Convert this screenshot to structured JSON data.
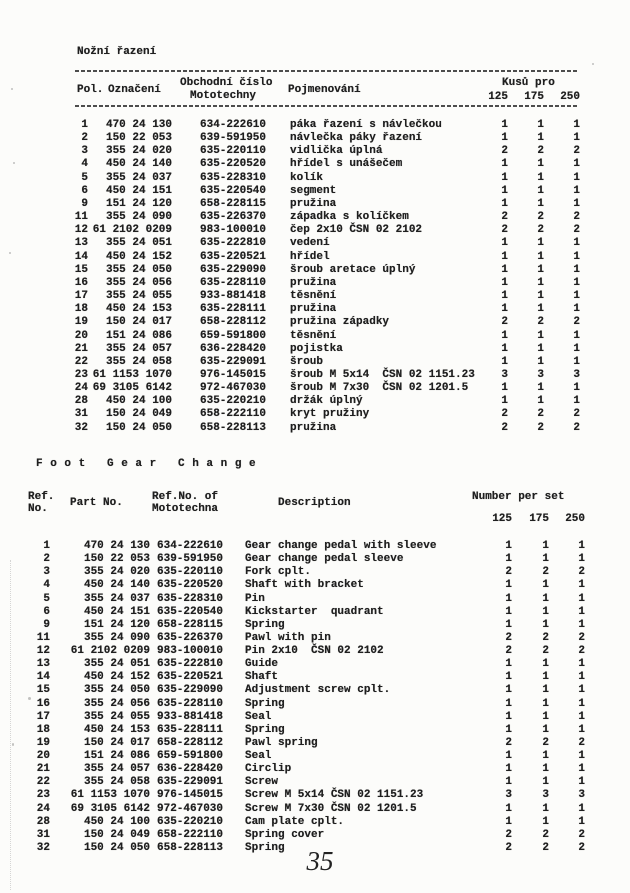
{
  "page_number": "35",
  "colors": {
    "paper": "#fcfcfa",
    "ink": "#1f1f1f"
  },
  "czech_table": {
    "title": "Nožní řazení",
    "headers": {
      "pol": "Pol.",
      "part": "Označení",
      "trade_line1": "Obchodní číslo",
      "trade_line2": "Mototechny",
      "name": "Pojmenování",
      "qty_group": "Kusů pro"
    },
    "qty_cols": [
      "125",
      "175",
      "250"
    ],
    "rows": [
      [
        "1",
        "470 24 130",
        "634-222610",
        "páka řazení s návlečkou",
        "1",
        "1",
        "1"
      ],
      [
        "2",
        "150 22 053",
        "639-591950",
        "návlečka páky řazení",
        "1",
        "1",
        "1"
      ],
      [
        "3",
        "355 24 020",
        "635-220110",
        "vidlička úplná",
        "2",
        "2",
        "2"
      ],
      [
        "4",
        "450 24 140",
        "635-220520",
        "hřídel s unášečem",
        "1",
        "1",
        "1"
      ],
      [
        "5",
        "355 24 037",
        "635-228310",
        "kolík",
        "1",
        "1",
        "1"
      ],
      [
        "6",
        "450 24 151",
        "635-220540",
        "segment",
        "1",
        "1",
        "1"
      ],
      [
        "9",
        "151 24 120",
        "658-228115",
        "pružina",
        "1",
        "1",
        "1"
      ],
      [
        "11",
        "355 24 090",
        "635-226370",
        "západka s kolíčkem",
        "2",
        "2",
        "2"
      ],
      [
        "12",
        "61 2102 0209",
        "983-100010",
        "čep 2x10 ČSN 02 2102",
        "2",
        "2",
        "2"
      ],
      [
        "13",
        "355 24 051",
        "635-222810",
        "vedení",
        "1",
        "1",
        "1"
      ],
      [
        "14",
        "450 24 152",
        "635-220521",
        "hřídel",
        "1",
        "1",
        "1"
      ],
      [
        "15",
        "355 24 050",
        "635-229090",
        "šroub aretace úplný",
        "1",
        "1",
        "1"
      ],
      [
        "16",
        "355 24 056",
        "635-228110",
        "pružina",
        "1",
        "1",
        "1"
      ],
      [
        "17",
        "355 24 055",
        "933-881418",
        "těsnění",
        "1",
        "1",
        "1"
      ],
      [
        "18",
        "450 24 153",
        "635-228111",
        "pružina",
        "1",
        "1",
        "1"
      ],
      [
        "19",
        "150 24 017",
        "658-228112",
        "pružina západky",
        "2",
        "2",
        "2"
      ],
      [
        "20",
        "151 24 086",
        "659-591800",
        "těsnění",
        "1",
        "1",
        "1"
      ],
      [
        "21",
        "355 24 057",
        "636-228420",
        "pojistka",
        "1",
        "1",
        "1"
      ],
      [
        "22",
        "355 24 058",
        "635-229091",
        "šroub",
        "1",
        "1",
        "1"
      ],
      [
        "23",
        "61 1153 1070",
        "976-145015",
        "šroub M 5x14  ČSN 02 1151.23",
        "3",
        "3",
        "3"
      ],
      [
        "24",
        "69 3105 6142",
        "972-467030",
        "šroub M 7x30  ČSN 02 1201.5",
        "1",
        "1",
        "1"
      ],
      [
        "28",
        "450 24 100",
        "635-220210",
        "držák úplný",
        "1",
        "1",
        "1"
      ],
      [
        "31",
        "150 24 049",
        "658-222110",
        "kryt pružiny",
        "2",
        "2",
        "2"
      ],
      [
        "32",
        "150 24 050",
        "658-228113",
        "pružina",
        "2",
        "2",
        "2"
      ]
    ]
  },
  "english_table": {
    "title": "F o o t   G e a r   C h a n g e",
    "headers": {
      "ref_line1": "Ref.",
      "ref_line2": "No.",
      "part": "Part No.",
      "trade_line1": "Ref.No. of",
      "trade_line2": "Mototechna",
      "name": "Description",
      "qty_group": "Number per set"
    },
    "qty_cols": [
      "125",
      "175",
      "250"
    ],
    "rows": [
      [
        "1",
        "470 24 130",
        "634-222610",
        "Gear change pedal with sleeve",
        "1",
        "1",
        "1"
      ],
      [
        "2",
        "150 22 053",
        "639-591950",
        "Gear change pedal sleeve",
        "1",
        "1",
        "1"
      ],
      [
        "3",
        "355 24 020",
        "635-220110",
        "Fork cplt.",
        "2",
        "2",
        "2"
      ],
      [
        "4",
        "450 24 140",
        "635-220520",
        "Shaft with bracket",
        "1",
        "1",
        "1"
      ],
      [
        "5",
        "355 24 037",
        "635-228310",
        "Pin",
        "1",
        "1",
        "1"
      ],
      [
        "6",
        "450 24 151",
        "635-220540",
        "Kickstarter  quadrant",
        "1",
        "1",
        "1"
      ],
      [
        "9",
        "151 24 120",
        "658-228115",
        "Spring",
        "1",
        "1",
        "1"
      ],
      [
        "11",
        "355 24 090",
        "635-226370",
        "Pawl with pin",
        "2",
        "2",
        "2"
      ],
      [
        "12",
        "61 2102 0209",
        "983-100010",
        "Pin 2x10  ČSN 02 2102",
        "2",
        "2",
        "2"
      ],
      [
        "13",
        "355 24 051",
        "635-222810",
        "Guide",
        "1",
        "1",
        "1"
      ],
      [
        "14",
        "450 24 152",
        "635-220521",
        "Shaft",
        "1",
        "1",
        "1"
      ],
      [
        "15",
        "355 24 050",
        "635-229090",
        "Adjustment screw cplt.",
        "1",
        "1",
        "1"
      ],
      [
        "16",
        "355 24 056",
        "635-228110",
        "Spring",
        "1",
        "1",
        "1"
      ],
      [
        "17",
        "355 24 055",
        "933-881418",
        "Seal",
        "1",
        "1",
        "1"
      ],
      [
        "18",
        "450 24 153",
        "635-228111",
        "Spring",
        "1",
        "1",
        "1"
      ],
      [
        "19",
        "150 24 017",
        "658-228112",
        "Pawl spring",
        "2",
        "2",
        "2"
      ],
      [
        "20",
        "151 24 086",
        "659-591800",
        "Seal",
        "1",
        "1",
        "1"
      ],
      [
        "21",
        "355 24 057",
        "636-228420",
        "Circlip",
        "1",
        "1",
        "1"
      ],
      [
        "22",
        "355 24 058",
        "635-229091",
        "Screw",
        "1",
        "1",
        "1"
      ],
      [
        "23",
        "61 1153 1070",
        "976-145015",
        "Screw M 5x14 ČSN 02 1151.23",
        "3",
        "3",
        "3"
      ],
      [
        "24",
        "69 3105 6142",
        "972-467030",
        "Screw M 7x30 ČSN 02 1201.5",
        "1",
        "1",
        "1"
      ],
      [
        "28",
        "450 24 100",
        "635-220210",
        "Cam plate cplt.",
        "1",
        "1",
        "1"
      ],
      [
        "31",
        "150 24 049",
        "658-222110",
        "Spring cover",
        "2",
        "2",
        "2"
      ],
      [
        "32",
        "150 24 050",
        "658-228113",
        "Spring",
        "2",
        "2",
        "2"
      ]
    ]
  }
}
